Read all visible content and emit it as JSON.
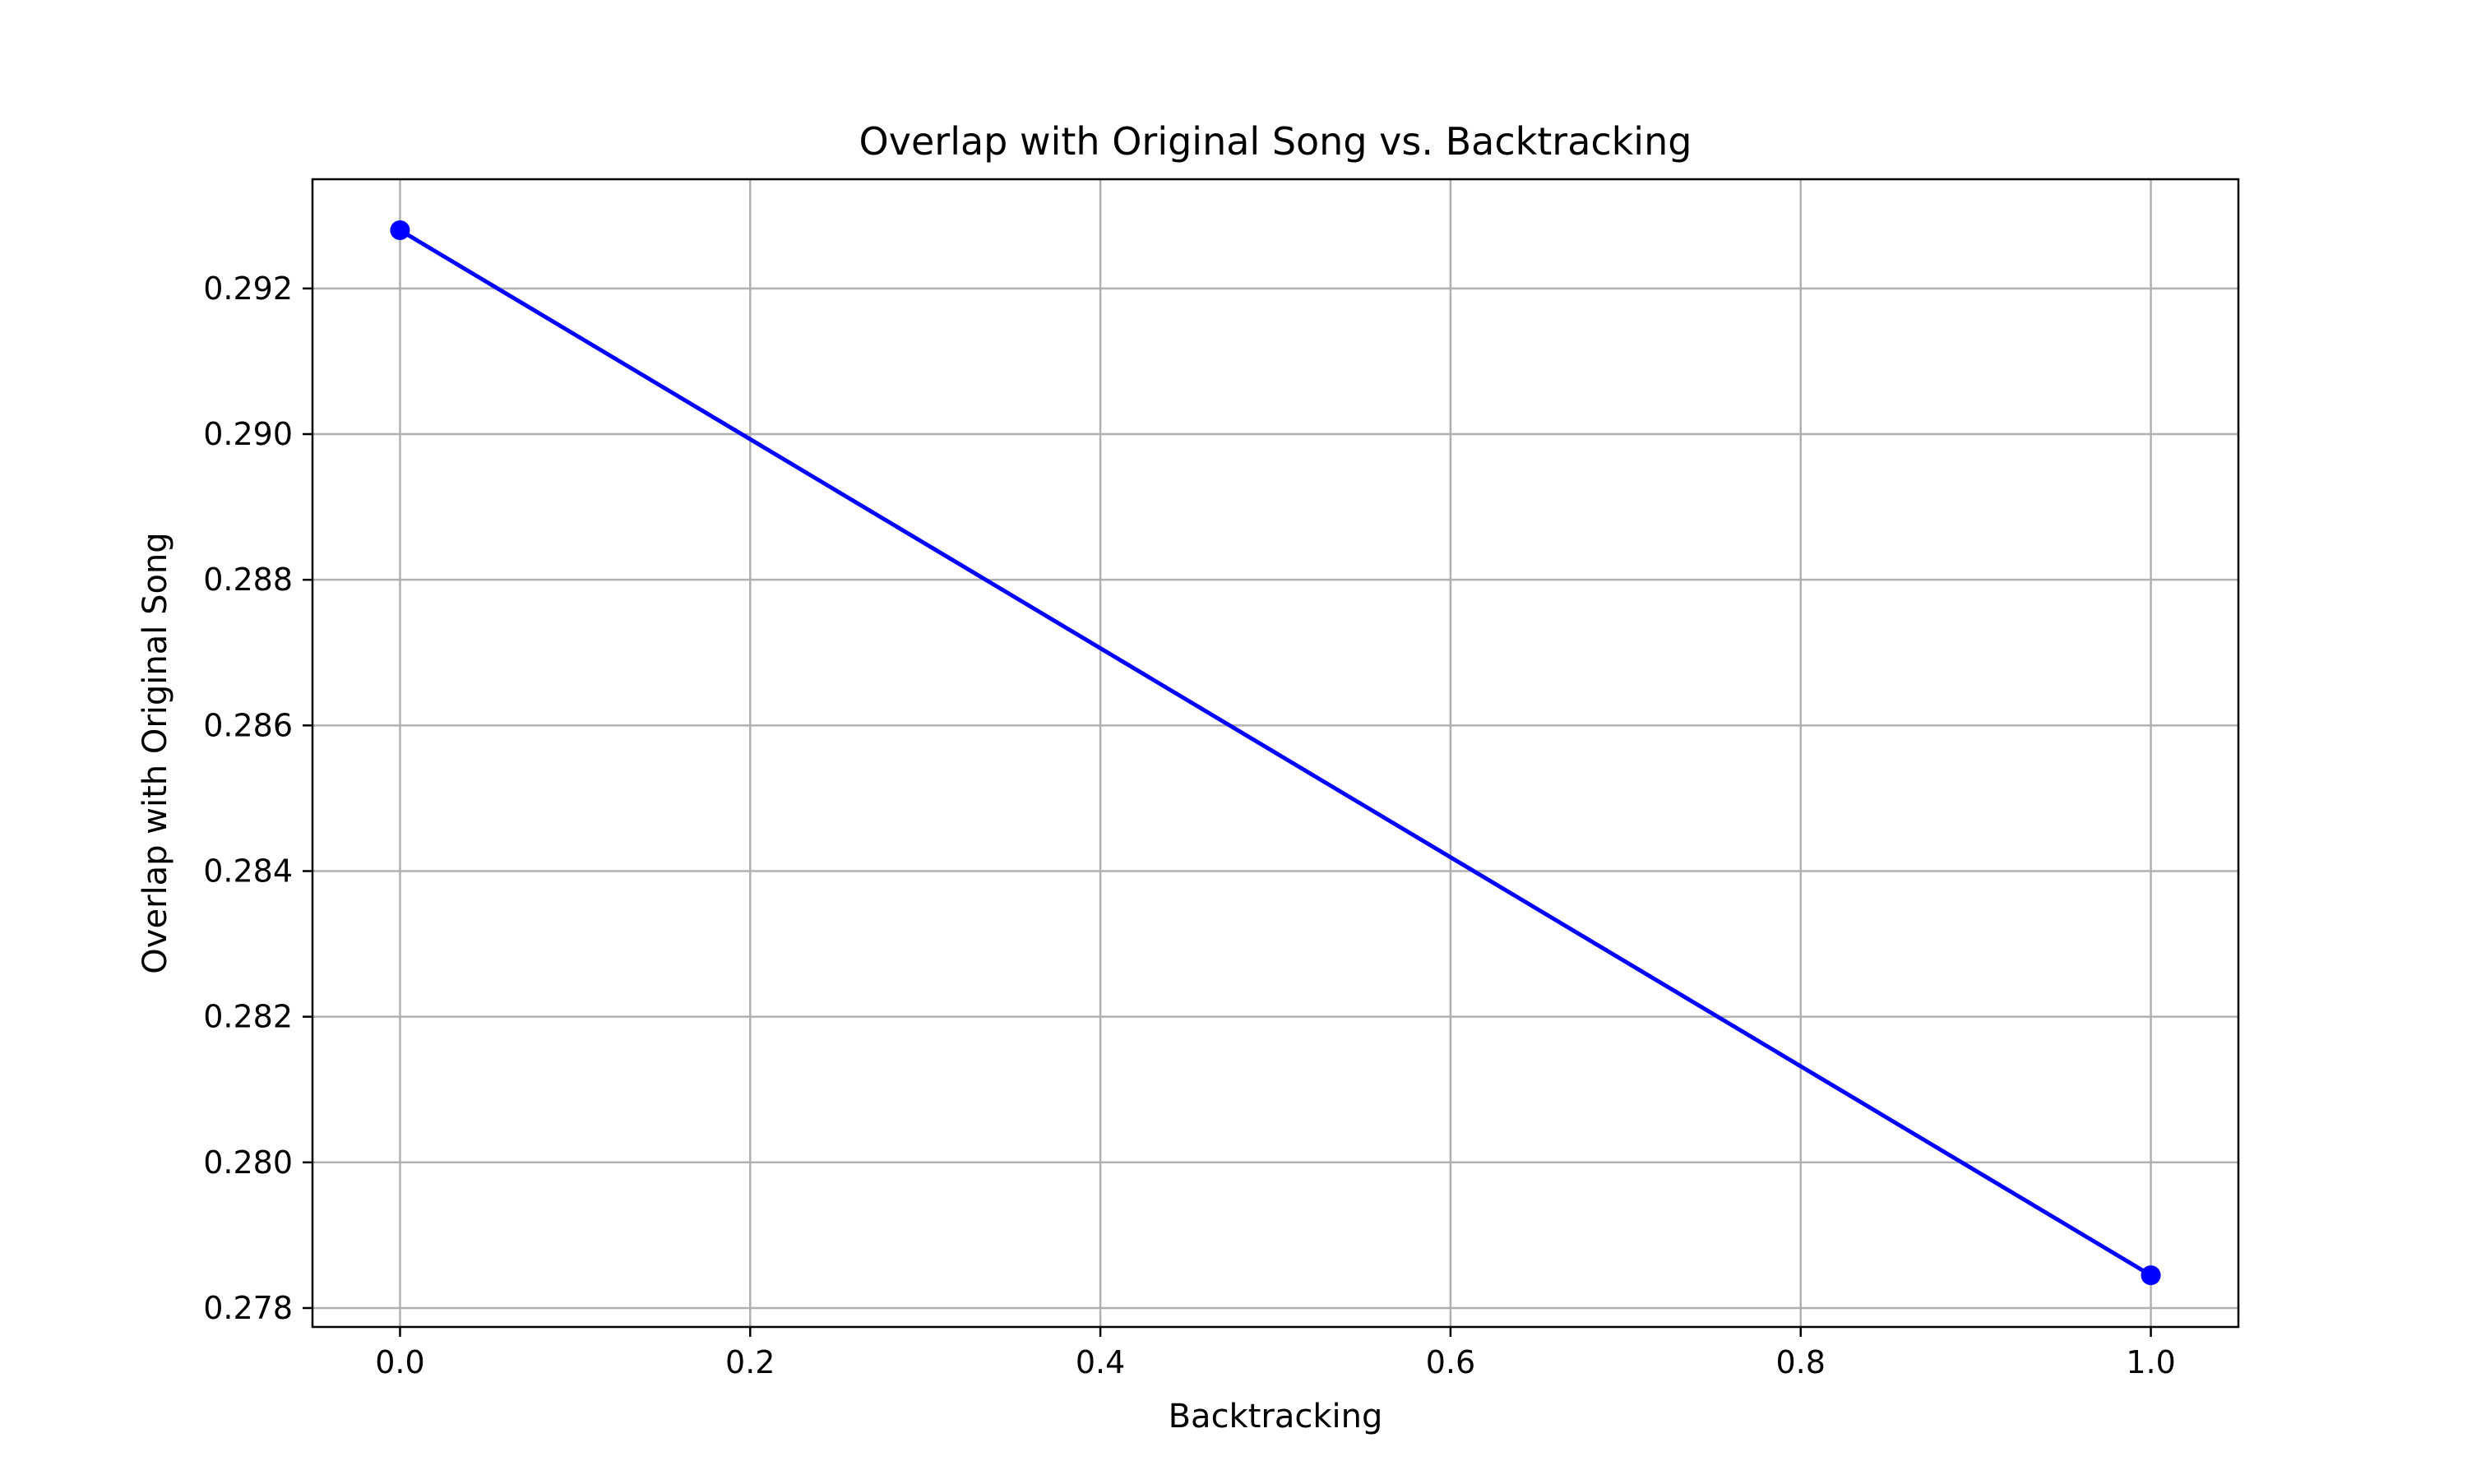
{
  "chart_data": {
    "type": "line",
    "title": "Overlap with Original Song vs. Backtracking",
    "xlabel": "Backtracking",
    "ylabel": "Overlap with Original Song",
    "xlim": [
      -0.05,
      1.05
    ],
    "ylim": [
      0.27774,
      0.2935
    ],
    "x_ticks": [
      0.0,
      0.2,
      0.4,
      0.6,
      0.8,
      1.0
    ],
    "x_tick_labels": [
      "0.0",
      "0.2",
      "0.4",
      "0.6",
      "0.8",
      "1.0"
    ],
    "y_ticks": [
      0.278,
      0.28,
      0.282,
      0.284,
      0.286,
      0.288,
      0.29,
      0.292
    ],
    "y_tick_labels": [
      "0.278",
      "0.280",
      "0.282",
      "0.284",
      "0.286",
      "0.288",
      "0.290",
      "0.292"
    ],
    "grid": true,
    "series": [
      {
        "color": "#0000ff",
        "marker": "circle",
        "points": [
          {
            "x": 0.0,
            "y": 0.2928
          },
          {
            "x": 1.0,
            "y": 0.27845
          }
        ]
      }
    ]
  }
}
